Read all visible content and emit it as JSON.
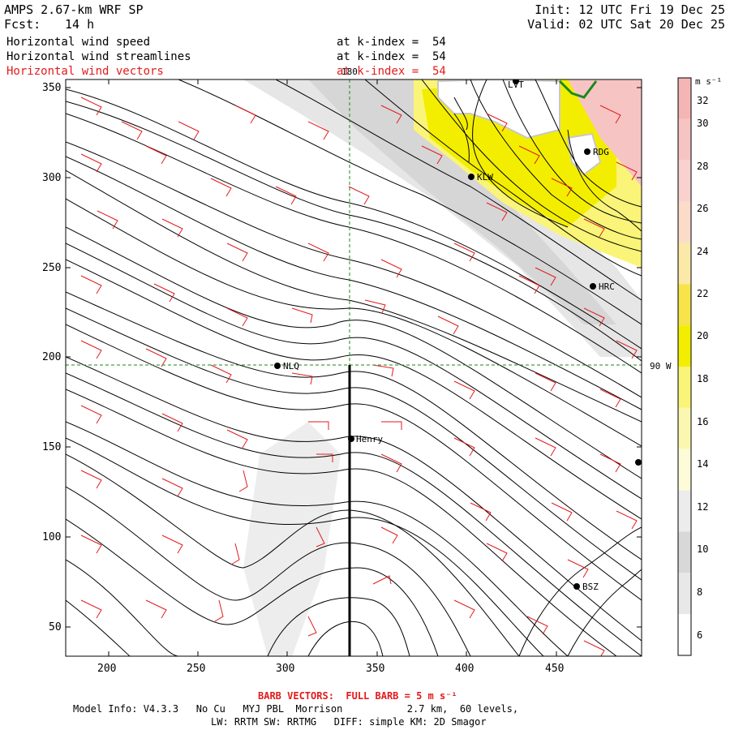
{
  "header": {
    "model": "AMPS 2.67-km WRF SP",
    "forecast_label": "Fcst:",
    "forecast_value": "14 h",
    "init": "Init: 12 UTC Fri 19 Dec 25",
    "valid": "Valid: 02 UTC Sat 20 Dec 25",
    "fields": [
      {
        "name": "Horizontal wind speed",
        "level": "at k-index =  54",
        "color": "#000000"
      },
      {
        "name": "Horizontal wind streamlines",
        "level": "at k-index =  54",
        "color": "#000000"
      },
      {
        "name": "Horizontal wind vectors",
        "level": "at k-index =  54",
        "color": "#e31a1c"
      }
    ]
  },
  "map": {
    "x_ticks": [
      "200",
      "250",
      "300",
      "350",
      "400",
      "450"
    ],
    "y_ticks": [
      "350",
      "300",
      "250",
      "200",
      "150",
      "100",
      "50"
    ],
    "meridian_label": "180",
    "parallel_label": "90 W",
    "stations": [
      {
        "name": "LVT",
        "label": "LVT"
      },
      {
        "name": "RDG",
        "label": "RDG"
      },
      {
        "name": "KLW",
        "label": "KLW"
      },
      {
        "name": "HRC",
        "label": "HRC"
      },
      {
        "name": "NLQ",
        "label": "NLQ"
      },
      {
        "name": "Henry",
        "label": "Henry"
      },
      {
        "name": "BSZ",
        "label": "BSZ"
      },
      {
        "name": "east-edge",
        "label": ""
      }
    ]
  },
  "colorbar": {
    "units": "m s⁻¹",
    "labels": [
      "32",
      "30",
      "28",
      "26",
      "24",
      "22",
      "20",
      "18",
      "16",
      "14",
      "12",
      "10",
      "8",
      "6"
    ],
    "bands": [
      {
        "min": 31,
        "color": "#f5b5b5"
      },
      {
        "min": 29,
        "color": "#f7c4c4"
      },
      {
        "min": 27,
        "color": "#f9d2d0"
      },
      {
        "min": 25,
        "color": "#fbdcc8"
      },
      {
        "min": 23,
        "color": "#fbe9a8"
      },
      {
        "min": 21,
        "color": "#f6e44a"
      },
      {
        "min": 19,
        "color": "#f3ee00"
      },
      {
        "min": 17,
        "color": "#faf478"
      },
      {
        "min": 15,
        "color": "#fbf7b0"
      },
      {
        "min": 13,
        "color": "#fdfbd8"
      },
      {
        "min": 11,
        "color": "#ececec"
      },
      {
        "min": 9,
        "color": "#d8d8d8"
      },
      {
        "min": 7,
        "color": "#e8e8e8"
      },
      {
        "min": 5,
        "color": "#ffffff"
      }
    ]
  },
  "footer": {
    "barb": "BARB VECTORS:  FULL BARB = 5 m s⁻¹",
    "model_info": "Model Info: V4.3.3   No Cu   MYJ PBL  Morrison           2.7 km,  60 levels,",
    "physics": "LW: RRTM SW: RRTMG   DIFF: simple KM: 2D Smagor"
  }
}
